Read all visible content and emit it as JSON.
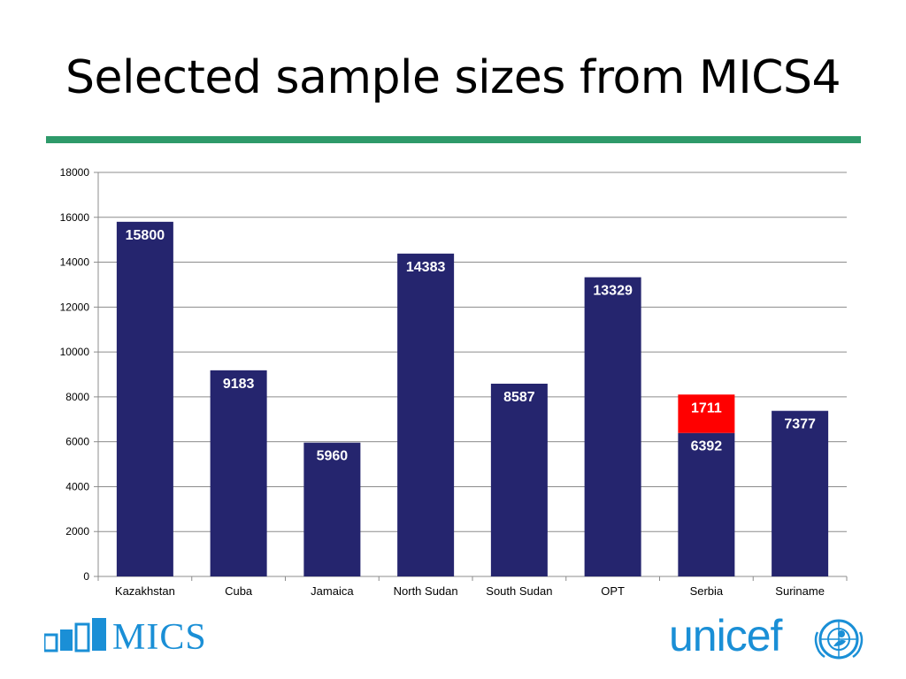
{
  "slide": {
    "title": "Selected sample sizes from MICS4",
    "rule_color": "#2e9a6a"
  },
  "chart_data": {
    "type": "bar",
    "stacked": true,
    "title": "",
    "xlabel": "",
    "ylabel": "",
    "ylim": [
      0,
      18000
    ],
    "yticks": [
      0,
      2000,
      4000,
      6000,
      8000,
      10000,
      12000,
      14000,
      16000,
      18000
    ],
    "grid": true,
    "legend": "none",
    "categories": [
      "Kazakhstan",
      "Cuba",
      "Jamaica",
      "North Sudan",
      "South Sudan",
      "OPT",
      "Serbia",
      "Suriname"
    ],
    "series": [
      {
        "color": "#25256e",
        "values": [
          15800,
          9183,
          5960,
          14383,
          8587,
          13329,
          6392,
          7377
        ]
      },
      {
        "color": "#ff0000",
        "values": [
          0,
          0,
          0,
          0,
          0,
          0,
          1711,
          0
        ]
      }
    ]
  },
  "logos": {
    "mics": {
      "text": "MICS",
      "color": "#1a8fd6"
    },
    "unicef": {
      "text": "unicef",
      "color": "#1a8fd6"
    }
  }
}
